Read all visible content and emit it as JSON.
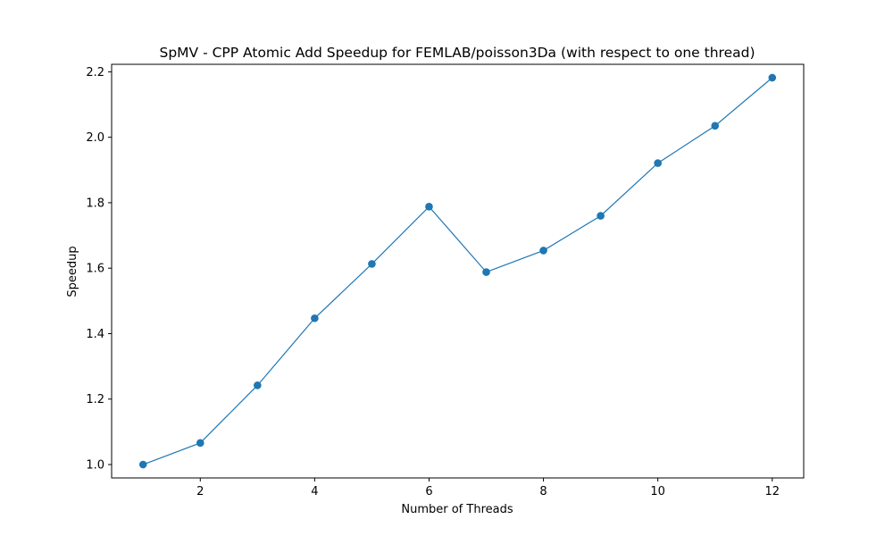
{
  "chart_data": {
    "type": "line",
    "title": "SpMV - CPP Atomic Add Speedup for FEMLAB/poisson3Da (with respect to one thread)",
    "xlabel": "Number of Threads",
    "ylabel": "Speedup",
    "x": [
      1,
      2,
      3,
      4,
      5,
      6,
      7,
      8,
      9,
      10,
      11,
      12
    ],
    "series": [
      {
        "values": [
          1.0,
          1.066,
          1.242,
          1.447,
          1.613,
          1.788,
          1.588,
          1.654,
          1.76,
          1.921,
          2.035,
          2.182
        ]
      }
    ],
    "xlim": [
      0.45,
      12.55
    ],
    "ylim": [
      0.9591,
      2.2229
    ],
    "xticks": [
      2,
      4,
      6,
      8,
      10,
      12
    ],
    "yticks": [
      1.0,
      1.2,
      1.4,
      1.6,
      1.8,
      2.0,
      2.2
    ],
    "grid": false,
    "markers": true,
    "color": "#1f77b4"
  }
}
